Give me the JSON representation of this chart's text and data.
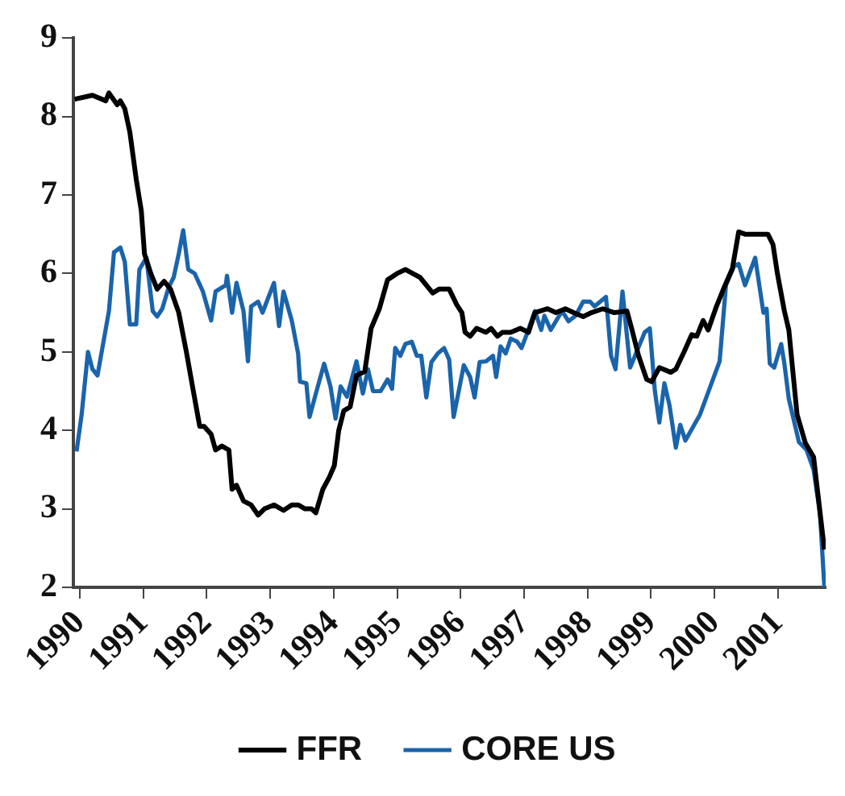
{
  "chart_data": {
    "type": "line",
    "xlim": [
      1989.9,
      2001.75
    ],
    "xticks": [
      1990,
      1991,
      1992,
      1993,
      1994,
      1995,
      1996,
      1997,
      1998,
      1999,
      2000,
      2001
    ],
    "ylim": [
      2,
      9
    ],
    "yticks": [
      2,
      3,
      4,
      5,
      6,
      7,
      8,
      9
    ],
    "grid": false,
    "legend": "bottom",
    "marker": "none",
    "line_style": "solid",
    "series": [
      {
        "name": "FFR",
        "color": "#000000",
        "x": [
          1989.92,
          1990.2,
          1990.41,
          1990.46,
          1990.59,
          1990.64,
          1990.71,
          1990.79,
          1990.89,
          1990.97,
          1991.02,
          1991.12,
          1991.22,
          1991.33,
          1991.43,
          1991.56,
          1991.68,
          1991.79,
          1991.89,
          1991.96,
          1992.07,
          1992.14,
          1992.24,
          1992.35,
          1992.4,
          1992.47,
          1992.58,
          1992.7,
          1992.81,
          1992.91,
          1993.06,
          1993.21,
          1993.34,
          1993.44,
          1993.55,
          1993.65,
          1993.72,
          1993.83,
          1993.93,
          1994.01,
          1994.08,
          1994.16,
          1994.26,
          1994.36,
          1994.49,
          1994.59,
          1994.72,
          1994.85,
          1995.0,
          1995.13,
          1995.36,
          1995.56,
          1995.66,
          1995.82,
          1995.94,
          1996.02,
          1996.07,
          1996.15,
          1996.25,
          1996.4,
          1996.48,
          1996.58,
          1996.66,
          1996.79,
          1996.94,
          1997.07,
          1997.17,
          1997.37,
          1997.5,
          1997.65,
          1997.78,
          1997.93,
          1998.06,
          1998.24,
          1998.42,
          1998.62,
          1998.7,
          1998.8,
          1998.93,
          1999.01,
          1999.13,
          1999.31,
          1999.39,
          1999.52,
          1999.64,
          1999.72,
          1999.82,
          1999.9,
          2000.03,
          2000.15,
          2000.28,
          2000.38,
          2000.48,
          2000.66,
          2000.84,
          2000.92,
          2000.99,
          2001.1,
          2001.17,
          2001.3,
          2001.43,
          2001.56,
          2001.73
        ],
        "values": [
          8.22,
          8.27,
          8.2,
          8.3,
          8.15,
          8.2,
          8.1,
          7.8,
          7.2,
          6.8,
          6.25,
          6.0,
          5.8,
          5.9,
          5.8,
          5.5,
          5.0,
          4.5,
          4.05,
          4.05,
          3.95,
          3.75,
          3.8,
          3.75,
          3.25,
          3.3,
          3.1,
          3.05,
          2.92,
          3.0,
          3.05,
          2.98,
          3.05,
          3.05,
          3.0,
          3.0,
          2.95,
          3.25,
          3.4,
          3.55,
          4.0,
          4.25,
          4.3,
          4.7,
          4.75,
          5.3,
          5.55,
          5.92,
          6.0,
          6.05,
          5.95,
          5.75,
          5.8,
          5.8,
          5.6,
          5.5,
          5.25,
          5.2,
          5.3,
          5.25,
          5.3,
          5.2,
          5.25,
          5.25,
          5.3,
          5.25,
          5.5,
          5.55,
          5.5,
          5.55,
          5.5,
          5.45,
          5.5,
          5.55,
          5.5,
          5.52,
          5.28,
          4.96,
          4.65,
          4.62,
          4.8,
          4.74,
          4.78,
          5.0,
          5.22,
          5.2,
          5.4,
          5.28,
          5.58,
          5.82,
          6.06,
          6.53,
          6.5,
          6.5,
          6.5,
          6.37,
          6.0,
          5.52,
          5.28,
          4.2,
          3.84,
          3.66,
          2.48
        ]
      },
      {
        "name": "CORE US",
        "color": "#1a64ab",
        "x": [
          1989.95,
          1990.03,
          1990.13,
          1990.2,
          1990.28,
          1990.46,
          1990.54,
          1990.64,
          1990.71,
          1990.79,
          1990.89,
          1990.94,
          1991.05,
          1991.15,
          1991.22,
          1991.3,
          1991.4,
          1991.48,
          1991.56,
          1991.63,
          1991.71,
          1991.81,
          1991.94,
          1992.07,
          1992.14,
          1992.3,
          1992.32,
          1992.4,
          1992.47,
          1992.58,
          1992.65,
          1992.7,
          1992.81,
          1992.88,
          1992.96,
          1993.06,
          1993.14,
          1993.21,
          1993.34,
          1993.44,
          1993.47,
          1993.57,
          1993.62,
          1993.72,
          1993.85,
          1993.95,
          1994.03,
          1994.11,
          1994.21,
          1994.36,
          1994.46,
          1994.54,
          1994.62,
          1994.74,
          1994.85,
          1994.92,
          1994.97,
          1995.05,
          1995.13,
          1995.23,
          1995.31,
          1995.38,
          1995.46,
          1995.54,
          1995.64,
          1995.74,
          1995.82,
          1995.89,
          1995.97,
          1996.05,
          1996.15,
          1996.22,
          1996.3,
          1996.4,
          1996.51,
          1996.56,
          1996.63,
          1996.71,
          1996.79,
          1996.89,
          1996.96,
          1997.04,
          1997.17,
          1997.27,
          1997.32,
          1997.42,
          1997.53,
          1997.6,
          1997.7,
          1997.81,
          1997.93,
          1998.04,
          1998.11,
          1998.29,
          1998.37,
          1998.44,
          1998.55,
          1998.67,
          1998.9,
          1998.98,
          1999.06,
          1999.13,
          1999.21,
          1999.29,
          1999.39,
          1999.46,
          1999.54,
          1999.77,
          2000.08,
          2000.18,
          2000.31,
          2000.38,
          2000.48,
          2000.64,
          2000.77,
          2000.82,
          2000.87,
          2000.94,
          2001.05,
          2001.1,
          2001.17,
          2001.33,
          2001.45,
          2001.56,
          2001.66,
          2001.73
        ],
        "values": [
          3.73,
          4.2,
          5.0,
          4.78,
          4.7,
          5.52,
          6.27,
          6.33,
          6.15,
          5.35,
          5.35,
          6.05,
          6.2,
          5.52,
          5.45,
          5.55,
          5.82,
          5.95,
          6.25,
          6.55,
          6.05,
          6.0,
          5.77,
          5.4,
          5.77,
          5.85,
          5.97,
          5.5,
          5.88,
          5.52,
          4.88,
          5.58,
          5.64,
          5.5,
          5.67,
          5.88,
          5.33,
          5.77,
          5.4,
          4.98,
          4.62,
          4.6,
          4.17,
          4.47,
          4.85,
          4.56,
          4.15,
          4.56,
          4.43,
          4.88,
          4.47,
          4.78,
          4.5,
          4.5,
          4.65,
          4.53,
          5.05,
          4.95,
          5.1,
          5.13,
          4.95,
          4.95,
          4.42,
          4.87,
          4.98,
          5.05,
          4.9,
          4.17,
          4.5,
          4.83,
          4.68,
          4.42,
          4.87,
          4.88,
          4.95,
          4.68,
          5.07,
          4.98,
          5.17,
          5.13,
          5.05,
          5.22,
          5.52,
          5.28,
          5.46,
          5.28,
          5.43,
          5.52,
          5.39,
          5.46,
          5.64,
          5.64,
          5.58,
          5.7,
          4.95,
          4.78,
          5.77,
          4.8,
          5.25,
          5.3,
          4.5,
          4.1,
          4.6,
          4.32,
          3.78,
          4.07,
          3.87,
          4.2,
          4.88,
          5.85,
          6.1,
          6.12,
          5.85,
          6.2,
          5.5,
          5.55,
          4.85,
          4.8,
          5.1,
          4.85,
          4.4,
          3.85,
          3.75,
          3.5,
          2.95,
          2.0
        ]
      }
    ]
  }
}
